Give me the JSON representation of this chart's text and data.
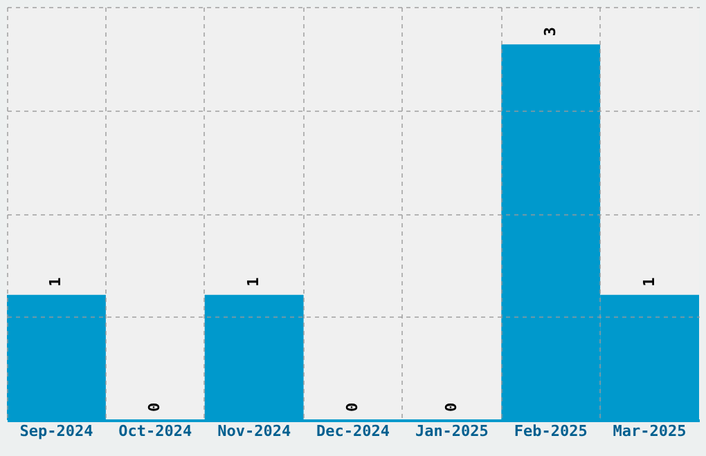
{
  "chart_data": {
    "type": "bar",
    "categories": [
      "Sep-2024",
      "Oct-2024",
      "Nov-2024",
      "Dec-2024",
      "Jan-2025",
      "Feb-2025",
      "Mar-2025"
    ],
    "values": [
      1,
      0,
      1,
      0,
      0,
      3,
      1
    ],
    "color": "#0099cc",
    "ylim": [
      0,
      3.3
    ],
    "yticks": [
      {
        "value": 0,
        "label": null
      },
      {
        "value": 0.825,
        "label": null
      },
      {
        "value": 1.65,
        "label": null
      },
      {
        "value": 2.475,
        "label": null
      },
      {
        "value": 3.3,
        "label": null
      }
    ],
    "grid": true,
    "data_labels": true,
    "tick_labels": "x"
  }
}
